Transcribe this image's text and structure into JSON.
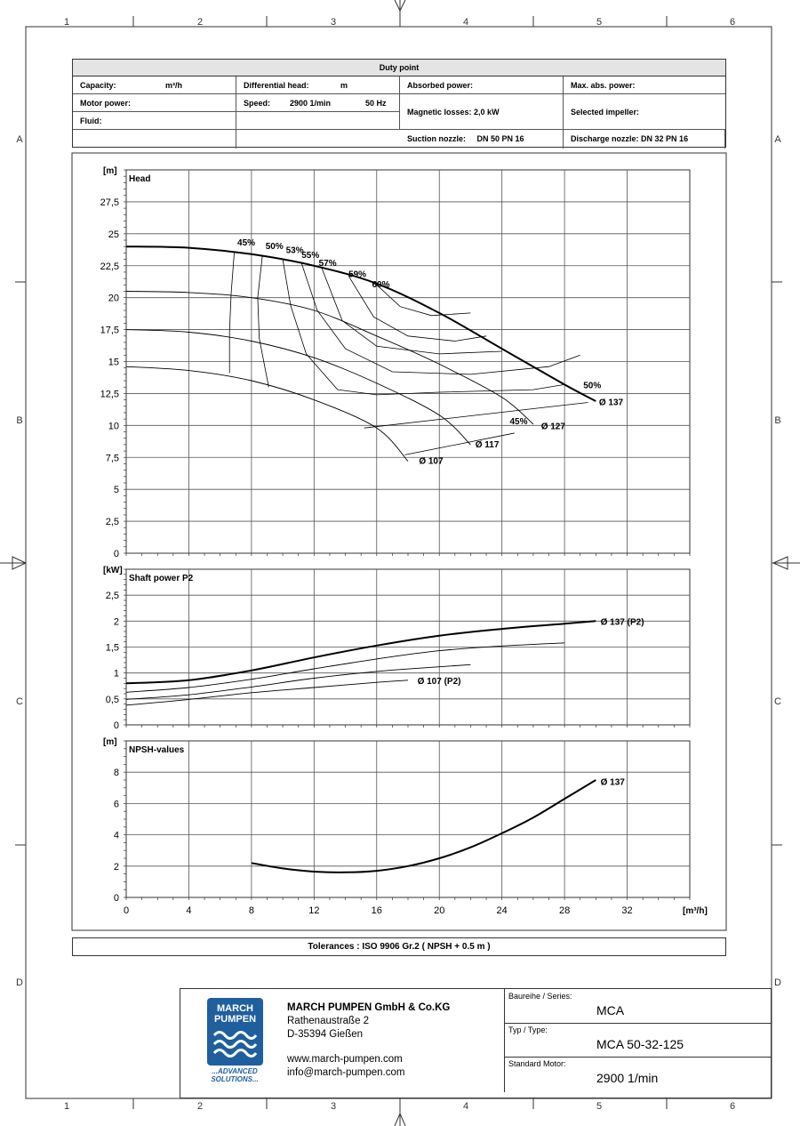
{
  "frame": {
    "columns": [
      "1",
      "2",
      "3",
      "4",
      "5",
      "6"
    ],
    "rows": [
      "A",
      "B",
      "C",
      "D"
    ]
  },
  "duty_point": {
    "title": "Duty point",
    "capacity_label": "Capacity:",
    "capacity_unit": "m³/h",
    "diff_head_label": "Differential head:",
    "diff_head_unit": "m",
    "absorbed_power_label": "Absorbed power:",
    "max_abs_power_label": "Max. abs. power:",
    "motor_power_label": "Motor power:",
    "speed_label": "Speed:",
    "speed_value": "2900 1/min",
    "frequency_value": "50 Hz",
    "magnetic_losses_label": "Magnetic losses:",
    "magnetic_losses_value": "2,0 kW",
    "selected_impeller_label": "Selected impeller:",
    "fluid_label": "Fluid:",
    "suction_nozzle_label": "Suction nozzle:",
    "suction_nozzle_value": "DN 50   PN 16",
    "discharge_nozzle_label": "Discharge nozzle:",
    "discharge_nozzle_value": "DN 32     PN 16"
  },
  "chart_data": [
    {
      "type": "line",
      "title": "Head",
      "ylabel": "[m]",
      "xlabel": "[m³/h]",
      "xlim": [
        0,
        36
      ],
      "ylim": [
        0,
        30
      ],
      "x_ticks": [
        "0",
        "4",
        "8",
        "12",
        "16",
        "20",
        "24",
        "28",
        "32"
      ],
      "y_ticks": [
        "0",
        "2,5",
        "5",
        "7,5",
        "10",
        "12,5",
        "15",
        "17,5",
        "20",
        "22,5",
        "25",
        "27,5"
      ],
      "grid": true,
      "series": [
        {
          "name": "Ø 137",
          "color": "#000000",
          "bold": true,
          "x": [
            0,
            4,
            8,
            12,
            16,
            20,
            24,
            28,
            30
          ],
          "y": [
            24.0,
            23.9,
            23.4,
            22.5,
            21.1,
            18.8,
            16.0,
            13.2,
            11.9
          ]
        },
        {
          "name": "Ø 127",
          "color": "#000000",
          "bold": false,
          "x": [
            0,
            4,
            8,
            12,
            16,
            20,
            24,
            26
          ],
          "y": [
            20.5,
            20.4,
            20.0,
            19.0,
            17.0,
            14.8,
            12.2,
            10.1
          ]
        },
        {
          "name": "Ø 117",
          "color": "#000000",
          "bold": false,
          "x": [
            0,
            4,
            8,
            12,
            16,
            20,
            22
          ],
          "y": [
            17.5,
            17.3,
            16.6,
            15.3,
            13.3,
            10.8,
            8.5
          ]
        },
        {
          "name": "Ø 107",
          "color": "#000000",
          "bold": false,
          "x": [
            0,
            4,
            8,
            12,
            16,
            18
          ],
          "y": [
            14.6,
            14.3,
            13.5,
            12.0,
            9.8,
            7.2
          ]
        }
      ],
      "efficiency_labels": [
        "45%",
        "50%",
        "53%",
        "55%",
        "57%",
        "59%",
        "60%",
        "50%",
        "45%"
      ],
      "annotations": [
        "Ø 137",
        "Ø 127",
        "Ø 117",
        "Ø 107"
      ]
    },
    {
      "type": "line",
      "title": "Shaft power P2",
      "ylabel": "[kW]",
      "xlim": [
        0,
        36
      ],
      "ylim": [
        0,
        3
      ],
      "y_ticks": [
        "0",
        "0,5",
        "1",
        "1,5",
        "2",
        "2,5"
      ],
      "grid": true,
      "series": [
        {
          "name": "Ø 137 (P2)",
          "color": "#000000",
          "bold": true,
          "x": [
            0,
            4,
            8,
            12,
            16,
            20,
            24,
            28,
            30
          ],
          "y": [
            0.8,
            0.86,
            1.05,
            1.3,
            1.53,
            1.72,
            1.85,
            1.95,
            2.0
          ]
        },
        {
          "name": "Ø 127",
          "color": "#000000",
          "bold": false,
          "x": [
            0,
            4,
            8,
            12,
            16,
            20,
            24,
            28
          ],
          "y": [
            0.63,
            0.72,
            0.88,
            1.08,
            1.27,
            1.43,
            1.52,
            1.58
          ]
        },
        {
          "name": "Ø 117",
          "color": "#000000",
          "bold": false,
          "x": [
            0,
            4,
            8,
            12,
            16,
            20,
            22
          ],
          "y": [
            0.49,
            0.58,
            0.73,
            0.9,
            1.03,
            1.12,
            1.16
          ]
        },
        {
          "name": "Ø 107 (P2)",
          "color": "#000000",
          "bold": false,
          "x": [
            0,
            4,
            8,
            12,
            16,
            18
          ],
          "y": [
            0.38,
            0.49,
            0.62,
            0.72,
            0.82,
            0.86
          ]
        }
      ],
      "annotations": [
        "Ø 137 (P2)",
        "Ø 107 (P2)"
      ]
    },
    {
      "type": "line",
      "title": "NPSH-values",
      "ylabel": "[m]",
      "xlabel": "[m³/h]",
      "xlim": [
        0,
        36
      ],
      "ylim": [
        0,
        10
      ],
      "x_ticks": [
        "0",
        "4",
        "8",
        "12",
        "16",
        "20",
        "24",
        "28",
        "32"
      ],
      "y_ticks": [
        "0",
        "2",
        "4",
        "6",
        "8"
      ],
      "grid": true,
      "series": [
        {
          "name": "Ø 137",
          "color": "#000000",
          "bold": true,
          "x": [
            8,
            10,
            12,
            14,
            16,
            18,
            20,
            22,
            24,
            26,
            28,
            30
          ],
          "y": [
            2.2,
            1.85,
            1.65,
            1.6,
            1.7,
            2.0,
            2.5,
            3.2,
            4.1,
            5.1,
            6.3,
            7.5
          ]
        }
      ],
      "annotations": [
        "Ø 137"
      ]
    }
  ],
  "tolerances": "Tolerances :  ISO 9906 Gr.2 ( NPSH + 0.5 m )",
  "title_block": {
    "logo_line1": "MARCH",
    "logo_line2": "PUMPEN",
    "logo_slogan1": "...ADVANCED",
    "logo_slogan2": "SOLUTIONS...",
    "company_name": "MARCH PUMPEN GmbH & Co.KG",
    "street": "Rathenaustraße 2",
    "city": "D-35394 Gießen",
    "web": "www.march-pumpen.com",
    "email": "info@march-pumpen.com",
    "series_label": "Baureihe / Series:",
    "series_value": "MCA",
    "type_label": "Typ / Type:",
    "type_value": "MCA 50-32-125",
    "motor_label": "Standard Motor:",
    "motor_value": "2900 1/min"
  }
}
